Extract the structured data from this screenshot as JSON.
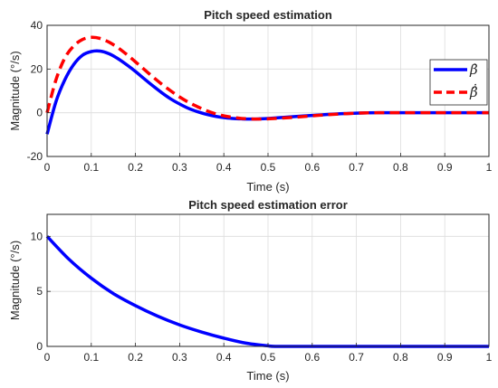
{
  "chart_data": [
    {
      "type": "line",
      "title": "Pitch speed estimation",
      "xlabel": "Time (s)",
      "ylabel": "Magnitude (°/s)",
      "xlim": [
        0,
        1
      ],
      "ylim": [
        -20,
        40
      ],
      "xticks": [
        0,
        0.1,
        0.2,
        0.3,
        0.4,
        0.5,
        0.6,
        0.7,
        0.8,
        0.9,
        1
      ],
      "xtick_labels": [
        "0",
        "0.1",
        "0.2",
        "0.3",
        "0.4",
        "0.5",
        "0.6",
        "0.7",
        "0.8",
        "0.9",
        "1"
      ],
      "yticks": [
        -20,
        0,
        20,
        40
      ],
      "ytick_labels": [
        "-20",
        "0",
        "20",
        "40"
      ],
      "grid": true,
      "legend": "right",
      "series": [
        {
          "name": "β̇",
          "color": "#0000ff",
          "style": "solid",
          "x": [
            0,
            0.02,
            0.04,
            0.06,
            0.08,
            0.1,
            0.12,
            0.14,
            0.16,
            0.18,
            0.2,
            0.22,
            0.24,
            0.26,
            0.28,
            0.3,
            0.32,
            0.34,
            0.36,
            0.38,
            0.4,
            0.42,
            0.44,
            0.46,
            0.48,
            0.5,
            0.55,
            0.6,
            0.65,
            0.7,
            0.75,
            0.8,
            0.85,
            0.9,
            0.95,
            1.0
          ],
          "y": [
            -9.8,
            5.0,
            15.0,
            22.0,
            26.3,
            28.0,
            28.2,
            27.0,
            24.8,
            22.0,
            18.9,
            15.5,
            12.2,
            9.1,
            6.3,
            4.0,
            2.0,
            0.5,
            -0.7,
            -1.6,
            -2.2,
            -2.6,
            -2.8,
            -2.9,
            -2.8,
            -2.6,
            -1.9,
            -1.2,
            -0.6,
            -0.2,
            0.0,
            0.0,
            0.0,
            0.0,
            0.0,
            0.0
          ]
        },
        {
          "name": "β̂̇",
          "color": "#ff0000",
          "style": "dashed",
          "x": [
            0,
            0.02,
            0.04,
            0.06,
            0.08,
            0.1,
            0.12,
            0.14,
            0.16,
            0.18,
            0.2,
            0.22,
            0.24,
            0.26,
            0.28,
            0.3,
            0.32,
            0.34,
            0.36,
            0.38,
            0.4,
            0.42,
            0.44,
            0.46,
            0.48,
            0.5,
            0.55,
            0.6,
            0.65,
            0.7,
            0.75,
            0.8,
            0.85,
            0.9,
            0.95,
            1.0
          ],
          "y": [
            0.0,
            15.0,
            25.0,
            30.5,
            33.5,
            34.5,
            34.0,
            32.3,
            29.8,
            26.7,
            23.3,
            19.8,
            16.3,
            13.0,
            10.0,
            7.2,
            4.8,
            2.8,
            1.0,
            -0.4,
            -1.4,
            -2.1,
            -2.6,
            -2.8,
            -2.9,
            -2.8,
            -2.2,
            -1.4,
            -0.7,
            -0.2,
            0.0,
            0.0,
            0.0,
            0.0,
            0.0,
            0.0
          ]
        }
      ]
    },
    {
      "type": "line",
      "title": "Pitch speed estimation error",
      "xlabel": "Time (s)",
      "ylabel": "Magnitude (°/s)",
      "xlim": [
        0,
        1
      ],
      "ylim": [
        0,
        12
      ],
      "xticks": [
        0,
        0.1,
        0.2,
        0.3,
        0.4,
        0.5,
        0.6,
        0.7,
        0.8,
        0.9,
        1
      ],
      "xtick_labels": [
        "0",
        "0.1",
        "0.2",
        "0.3",
        "0.4",
        "0.5",
        "0.6",
        "0.7",
        "0.8",
        "0.9",
        "1"
      ],
      "yticks": [
        0,
        5,
        10
      ],
      "ytick_labels": [
        "0",
        "5",
        "10"
      ],
      "grid": true,
      "series": [
        {
          "color": "#0000ff",
          "style": "solid",
          "x": [
            0,
            0.05,
            0.1,
            0.15,
            0.2,
            0.25,
            0.3,
            0.35,
            0.4,
            0.45,
            0.5,
            0.52,
            0.6,
            0.7,
            0.8,
            0.9,
            1.0
          ],
          "y": [
            10.0,
            7.9,
            6.2,
            4.8,
            3.7,
            2.75,
            1.95,
            1.3,
            0.75,
            0.3,
            0.05,
            0.0,
            0.0,
            0.0,
            0.0,
            0.0,
            0.0
          ]
        }
      ]
    }
  ]
}
